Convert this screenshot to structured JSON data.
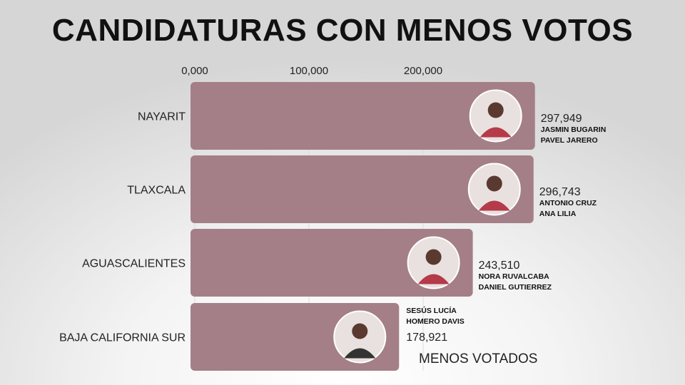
{
  "chart_data": {
    "type": "bar",
    "orientation": "horizontal",
    "title": "CANDIDATURAS CON MENOS VOTOS",
    "categories": [
      "NAYARIT",
      "TLAXCALA",
      "AGUASCALIENTES",
      "BAJA CALIFORNIA SUR"
    ],
    "values": [
      297949,
      296743,
      243510,
      178921
    ],
    "value_labels": [
      "297,949",
      "296,743",
      "243,510",
      "178,921"
    ],
    "candidates": [
      [
        "JASMIN BUGARIN",
        "PAVEL JARERO"
      ],
      [
        "ANTONIO CRUZ",
        "ANA LILIA"
      ],
      [
        "NORA RUVALCABA",
        "DANIEL GUTIERREZ"
      ],
      [
        "SESÚS LUCÍA",
        "HOMERO DAVIS"
      ]
    ],
    "x_ticks": [
      0,
      100000,
      200000
    ],
    "x_tick_labels": [
      "0,000",
      "100,000",
      "200,000"
    ],
    "xlim": [
      0,
      300000
    ],
    "grid": true,
    "legend": "MENOS VOTADOS",
    "bar_color": "#a47f88"
  }
}
